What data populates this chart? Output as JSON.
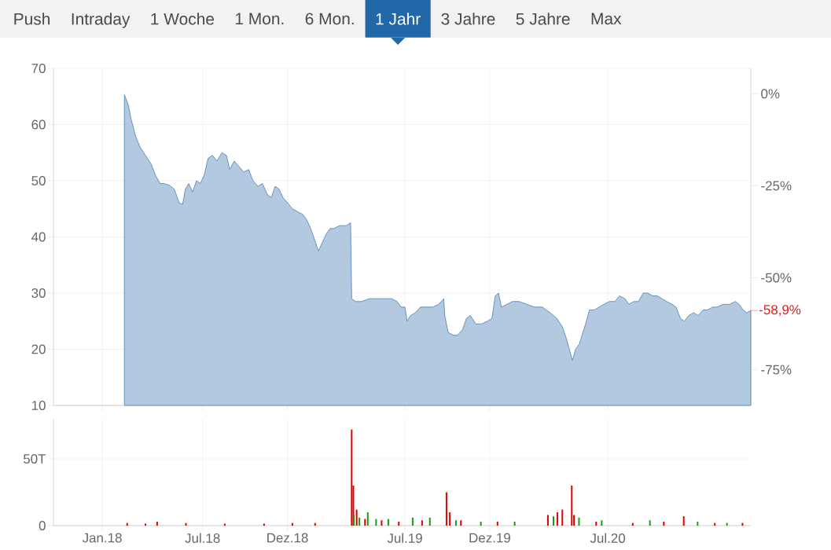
{
  "chart_data": [
    {
      "type": "other",
      "categories": [
        "Push",
        "Intraday",
        "1 Woche",
        "1 Mon.",
        "6 Mon.",
        "1 Jahr",
        "3 Jahre",
        "5 Jahre",
        "Max"
      ],
      "colors": [
        "#f2f2f2",
        "#f2f2f2",
        "#f2f2f2",
        "#f2f2f2",
        "#f2f2f2",
        "#2268a8",
        "#f2f2f2",
        "#f2f2f2",
        "#f2f2f2"
      ]
    },
    {
      "type": "area",
      "grid": true,
      "tick_labels": "y",
      "xlim": [
        "2017-10-05",
        "2021-03-16"
      ],
      "xticks": [
        {
          "value": "2018-01-01",
          "label": null
        },
        {
          "value": "2018-07-01",
          "label": null
        },
        {
          "value": "2018-12-01",
          "label": null
        },
        {
          "value": "2019-07-01",
          "label": null
        },
        {
          "value": "2019-12-01",
          "label": null
        },
        {
          "value": "2020-07-01",
          "label": null
        }
      ],
      "ylim": [
        10,
        70
      ],
      "yticks": [
        10,
        20,
        30,
        40,
        50,
        60,
        70
      ],
      "y2lim": [
        -84.7,
        6.9
      ],
      "y2ticks": [
        {
          "value": 0,
          "label": "0%"
        },
        {
          "value": -25,
          "label": "-25%"
        },
        {
          "value": -50,
          "label": "-50%"
        },
        {
          "value": -75,
          "label": "-75%"
        }
      ],
      "annotations": [
        {
          "text": "-58,9%",
          "x": "2021-03-16",
          "y": 26.9
        }
      ],
      "series": [
        {
          "color": "#4a7fb5",
          "x": [
            "2018-02-10",
            "2018-02-17",
            "2018-02-22",
            "2018-03-02",
            "2018-03-10",
            "2018-03-20",
            "2018-03-30",
            "2018-04-07",
            "2018-04-15",
            "2018-04-22",
            "2018-05-02",
            "2018-05-11",
            "2018-05-20",
            "2018-05-26",
            "2018-05-31",
            "2018-06-06",
            "2018-06-13",
            "2018-06-20",
            "2018-06-27",
            "2018-07-04",
            "2018-07-11",
            "2018-07-19",
            "2018-07-27",
            "2018-08-05",
            "2018-08-13",
            "2018-08-19",
            "2018-08-27",
            "2018-09-05",
            "2018-09-13",
            "2018-09-22",
            "2018-09-30",
            "2018-10-09",
            "2018-10-17",
            "2018-10-26",
            "2018-11-02",
            "2018-11-09",
            "2018-11-16",
            "2018-11-23",
            "2018-12-02",
            "2018-12-10",
            "2018-12-19",
            "2018-12-29",
            "2019-01-05",
            "2019-01-12",
            "2019-01-19",
            "2019-01-26",
            "2019-02-02",
            "2019-02-09",
            "2019-02-16",
            "2019-02-23",
            "2019-03-05",
            "2019-03-17",
            "2019-03-25",
            "2019-03-27",
            "2019-04-03",
            "2019-04-14",
            "2019-04-28",
            "2019-05-12",
            "2019-05-27",
            "2019-06-07",
            "2019-06-17",
            "2019-06-24",
            "2019-07-01",
            "2019-07-05",
            "2019-07-11",
            "2019-07-20",
            "2019-07-29",
            "2019-08-08",
            "2019-08-20",
            "2019-08-31",
            "2019-09-09",
            "2019-09-11",
            "2019-09-17",
            "2019-09-26",
            "2019-10-04",
            "2019-10-13",
            "2019-10-20",
            "2019-10-27",
            "2019-11-06",
            "2019-11-16",
            "2019-11-27",
            "2019-12-05",
            "2019-12-11",
            "2019-12-17",
            "2019-12-22",
            "2020-01-01",
            "2020-01-11",
            "2020-01-23",
            "2020-02-06",
            "2020-02-20",
            "2020-03-05",
            "2020-03-19",
            "2020-03-31",
            "2020-04-10",
            "2020-04-17",
            "2020-04-24",
            "2020-04-28",
            "2020-05-04",
            "2020-05-11",
            "2020-05-17",
            "2020-05-22",
            "2020-05-29",
            "2020-06-07",
            "2020-06-15",
            "2020-06-24",
            "2020-07-04",
            "2020-07-14",
            "2020-07-22",
            "2020-08-01",
            "2020-08-08",
            "2020-08-17",
            "2020-08-25",
            "2020-09-03",
            "2020-09-11",
            "2020-09-20",
            "2020-09-28",
            "2020-10-07",
            "2020-10-15",
            "2020-10-25",
            "2020-11-01",
            "2020-11-09",
            "2020-11-16",
            "2020-11-24",
            "2020-12-03",
            "2020-12-11",
            "2020-12-20",
            "2020-12-28",
            "2021-01-06",
            "2021-01-14",
            "2021-01-25",
            "2021-02-06",
            "2021-02-16",
            "2021-02-23",
            "2021-03-02",
            "2021-03-09",
            "2021-03-16"
          ],
          "values": [
            65.3,
            63.5,
            61,
            58,
            56,
            54.5,
            53,
            51,
            49.5,
            49.5,
            49.2,
            48.5,
            46,
            45.8,
            48.5,
            49.5,
            48,
            50,
            49.5,
            51,
            54,
            54.5,
            53.5,
            55,
            54.5,
            52,
            53.5,
            52.5,
            51.5,
            52,
            50,
            49,
            49.5,
            47.5,
            47,
            49,
            48.5,
            47,
            46,
            45,
            44.5,
            44,
            43,
            41.5,
            39.5,
            37.5,
            39,
            40.5,
            41.5,
            41.5,
            42,
            42,
            42.5,
            29,
            28.5,
            28.5,
            29,
            29,
            29,
            29,
            28.5,
            27.5,
            27.5,
            25,
            26,
            26.5,
            27.5,
            27.5,
            27.5,
            28,
            29,
            26,
            23,
            22.5,
            22.5,
            23.5,
            25.5,
            26,
            24.5,
            24.5,
            25,
            25.5,
            29.5,
            30,
            27.5,
            28,
            28.5,
            28.5,
            28,
            27.5,
            27.5,
            26.5,
            25.5,
            24,
            22,
            19.5,
            18,
            20,
            21,
            23,
            24.5,
            27,
            27,
            27.5,
            28,
            28.5,
            28.5,
            29.5,
            29,
            28,
            28.5,
            28.5,
            30,
            30,
            29.5,
            29.5,
            29,
            28.5,
            28,
            27.5,
            25.5,
            25,
            26,
            26.5,
            26,
            27,
            27,
            27.5,
            27.5,
            28,
            28,
            28.5,
            28,
            27,
            26.5,
            26.9
          ]
        }
      ]
    },
    {
      "type": "bar",
      "grid": true,
      "xlim": [
        "2017-10-05",
        "2021-03-16"
      ],
      "xticks": [
        {
          "value": "2018-01-01",
          "label": "Jan.18"
        },
        {
          "value": "2018-07-01",
          "label": "Jul.18"
        },
        {
          "value": "2018-12-01",
          "label": "Dez.18"
        },
        {
          "value": "2019-07-01",
          "label": "Jul.19"
        },
        {
          "value": "2019-12-01",
          "label": "Dez.19"
        },
        {
          "value": "2020-07-01",
          "label": "Jul.20"
        }
      ],
      "ylim": [
        0,
        80
      ],
      "yticks": [
        0,
        {
          "value": 50,
          "label": "50T"
        }
      ],
      "series": [
        {
          "color": "#e00000",
          "x": [
            "2018-02-15",
            "2018-03-20",
            "2018-04-10",
            "2018-06-01",
            "2018-08-10",
            "2018-10-20",
            "2018-12-10",
            "2019-01-20",
            "2019-03-27",
            "2019-03-30",
            "2019-04-05",
            "2019-04-20",
            "2019-05-20",
            "2019-06-20",
            "2019-08-01",
            "2019-09-14",
            "2019-09-20",
            "2019-10-10",
            "2019-12-15",
            "2020-03-15",
            "2020-04-01",
            "2020-04-10",
            "2020-04-27",
            "2020-05-01",
            "2020-06-10",
            "2020-08-15",
            "2020-10-10",
            "2020-11-15",
            "2021-01-10",
            "2021-03-01"
          ],
          "values": [
            2,
            1.5,
            3,
            2,
            1.5,
            1.5,
            2,
            2,
            72,
            30,
            12,
            5,
            4,
            3,
            4,
            25,
            10,
            4,
            3,
            8,
            10,
            12,
            30,
            8,
            3,
            2,
            3,
            7,
            2,
            2
          ]
        },
        {
          "color": "#1a9a1a",
          "x": [
            "2019-03-31",
            "2019-04-10",
            "2019-04-25",
            "2019-05-10",
            "2019-06-01",
            "2019-07-15",
            "2019-08-15",
            "2019-10-01",
            "2019-11-15",
            "2020-01-15",
            "2020-03-25",
            "2020-05-10",
            "2020-06-20",
            "2020-09-15",
            "2020-12-10",
            "2021-02-01"
          ],
          "values": [
            8,
            6,
            10,
            5,
            5,
            6,
            6,
            4,
            3,
            3,
            7,
            6,
            4,
            4,
            3,
            2
          ]
        }
      ]
    }
  ]
}
